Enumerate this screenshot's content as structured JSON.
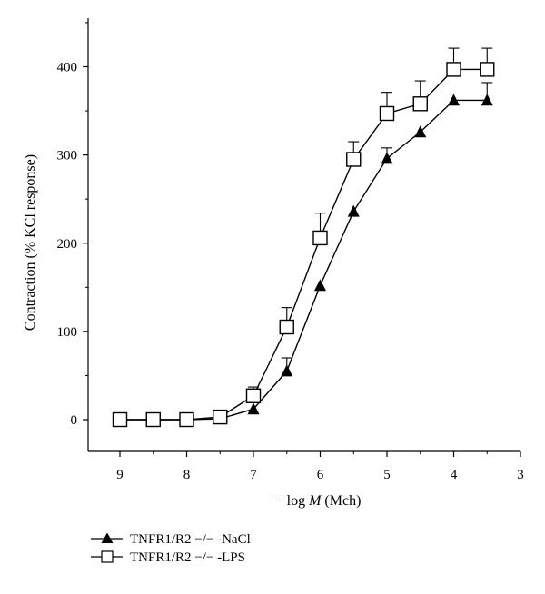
{
  "chart_data": {
    "type": "line",
    "xlabel_prefix": "− log ",
    "xlabel_var": "M",
    "xlabel_suffix": " (Mch)",
    "ylabel": "Contraction (% KCl response)",
    "xlim": [
      9,
      3
    ],
    "ylim": [
      0,
      450
    ],
    "x_ticks": [
      9,
      8,
      7,
      6,
      5,
      4,
      3
    ],
    "y_ticks": [
      0,
      100,
      200,
      300,
      400
    ],
    "x": [
      9,
      8.5,
      8,
      7.5,
      7,
      6.5,
      6,
      5.5,
      5,
      4.5,
      4,
      3.5
    ],
    "grid": false,
    "legend_position": "bottom-left",
    "series": [
      {
        "name": "TNFR1/R2 −/− -NaCl",
        "marker": "filled-triangle",
        "color": "#000000",
        "values": [
          0,
          0,
          0,
          1,
          12,
          55,
          152,
          236,
          296,
          326,
          362,
          362
        ],
        "error_upper": [
          0,
          0,
          0,
          0,
          0,
          15,
          0,
          0,
          12,
          0,
          0,
          20
        ]
      },
      {
        "name": "TNFR1/R2 −/− -LPS",
        "marker": "open-square",
        "color": "#000000",
        "values": [
          0,
          0,
          0,
          3,
          27,
          105,
          206,
          295,
          347,
          358,
          397,
          397
        ],
        "error_upper": [
          0,
          0,
          0,
          0,
          10,
          22,
          28,
          20,
          24,
          26,
          24,
          24
        ]
      }
    ]
  }
}
